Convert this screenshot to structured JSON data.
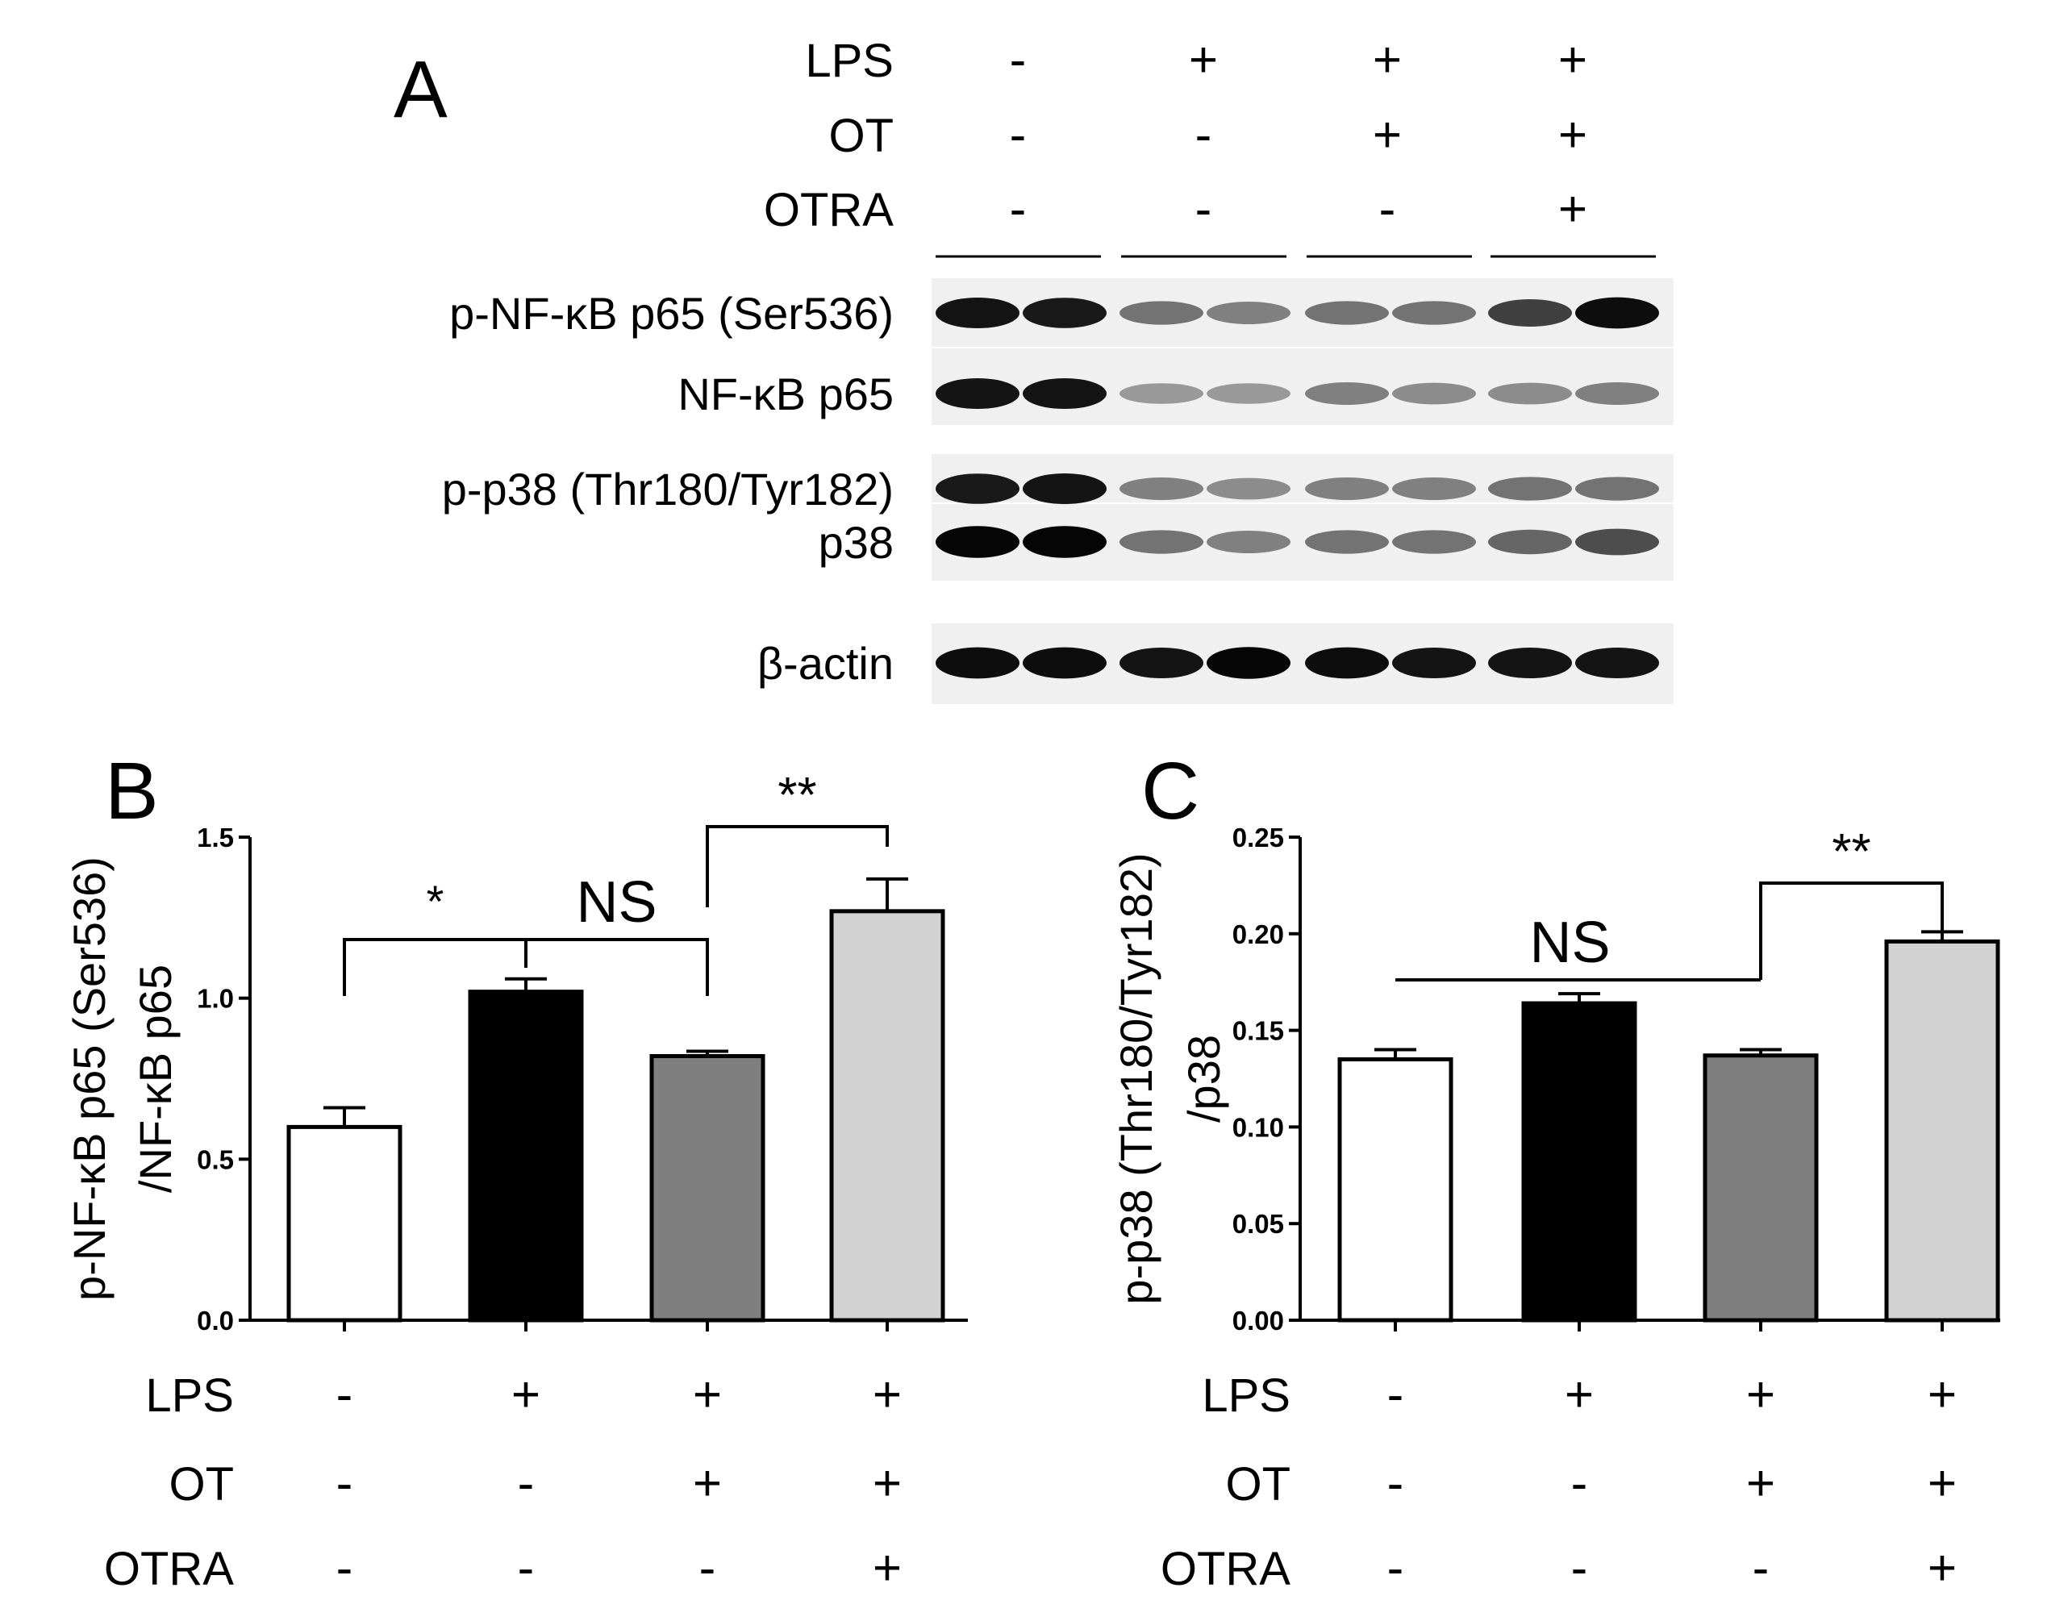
{
  "panel_labels": {
    "a": "A",
    "b": "B",
    "c": "C"
  },
  "blot": {
    "treatment_rows": [
      {
        "name": "LPS",
        "values": [
          "-",
          "+",
          "+",
          "+"
        ]
      },
      {
        "name": "OT",
        "values": [
          "-",
          "-",
          "+",
          "+"
        ]
      },
      {
        "name": "OTRA",
        "values": [
          "-",
          "-",
          "-",
          "+"
        ]
      }
    ],
    "bands": [
      {
        "label": "p-NF-κB p65 (Ser536)",
        "intensity": [
          0.92,
          0.9,
          0.55,
          0.5,
          0.55,
          0.55,
          0.75,
          0.95
        ]
      },
      {
        "label": "NF-κB p65",
        "intensity": [
          0.92,
          0.92,
          0.4,
          0.4,
          0.5,
          0.45,
          0.45,
          0.5
        ]
      },
      {
        "label": "p-p38 (Thr180/Tyr182)",
        "intensity": [
          0.9,
          0.92,
          0.5,
          0.45,
          0.5,
          0.5,
          0.55,
          0.55
        ]
      },
      {
        "label": "p38",
        "intensity": [
          0.98,
          0.98,
          0.55,
          0.5,
          0.55,
          0.55,
          0.6,
          0.7
        ]
      },
      {
        "label": "β-actin",
        "intensity": [
          0.95,
          0.95,
          0.92,
          0.98,
          0.95,
          0.92,
          0.92,
          0.92
        ]
      }
    ]
  },
  "chart_data": [
    {
      "type": "bar",
      "panel": "B",
      "ylabel_lines": [
        "p-NF-κB p65 (Ser536)",
        "/NF-κB p65"
      ],
      "ylim": [
        0,
        1.5
      ],
      "yticks": [
        "0.0",
        "0.5",
        "1.0",
        "1.5"
      ],
      "values": [
        0.6,
        1.02,
        0.82,
        1.27
      ],
      "errors": [
        0.06,
        0.04,
        0.015,
        0.1
      ],
      "fills": [
        "#ffffff",
        "#000000",
        "#7f7f7f",
        "#d3d3d3"
      ],
      "significance": [
        {
          "from": 0,
          "to": 1,
          "label": "*"
        },
        {
          "from": 1,
          "to": 2,
          "label": "NS"
        },
        {
          "from": 2,
          "to": 3,
          "label": "**"
        }
      ],
      "treatment_rows": [
        {
          "name": "LPS",
          "values": [
            "-",
            "+",
            "+",
            "+"
          ]
        },
        {
          "name": "OT",
          "values": [
            "-",
            "-",
            "+",
            "+"
          ]
        },
        {
          "name": "OTRA",
          "values": [
            "-",
            "-",
            "-",
            "+"
          ]
        }
      ]
    },
    {
      "type": "bar",
      "panel": "C",
      "ylabel_lines": [
        "p-p38 (Thr180/Tyr182)",
        "/p38"
      ],
      "ylim": [
        0,
        0.25
      ],
      "yticks": [
        "0.00",
        "0.05",
        "0.10",
        "0.15",
        "0.20",
        "0.25"
      ],
      "values": [
        0.135,
        0.164,
        0.137,
        0.196
      ],
      "errors": [
        0.005,
        0.005,
        0.003,
        0.005
      ],
      "fills": [
        "#ffffff",
        "#000000",
        "#7f7f7f",
        "#d3d3d3"
      ],
      "significance": [
        {
          "from": 0,
          "to": 2,
          "label": "NS"
        },
        {
          "from": 2,
          "to": 3,
          "label": "**"
        }
      ],
      "treatment_rows": [
        {
          "name": "LPS",
          "values": [
            "-",
            "+",
            "+",
            "+"
          ]
        },
        {
          "name": "OT",
          "values": [
            "-",
            "-",
            "+",
            "+"
          ]
        },
        {
          "name": "OTRA",
          "values": [
            "-",
            "-",
            "-",
            "+"
          ]
        }
      ]
    }
  ]
}
